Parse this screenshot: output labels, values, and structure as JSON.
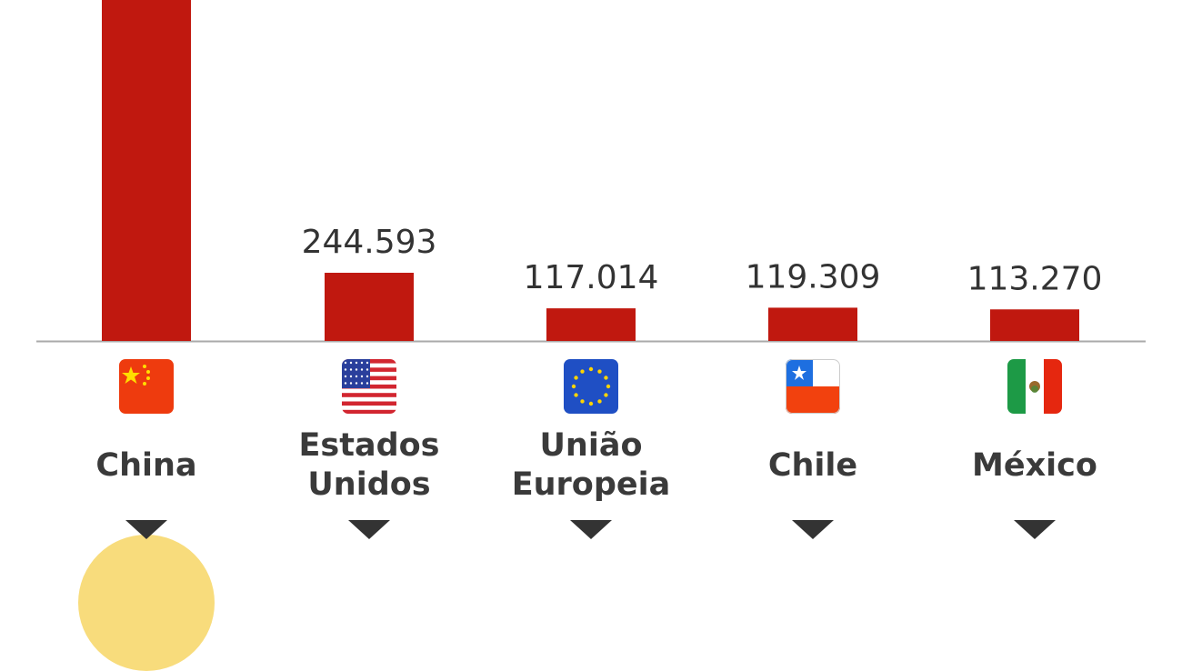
{
  "chart_data": {
    "type": "bar",
    "title": "",
    "xlabel": "",
    "ylabel": "",
    "categories": [
      "China",
      "Estados Unidos",
      "União Europeia",
      "Chile",
      "México"
    ],
    "name_lines": [
      [
        "China"
      ],
      [
        "Estados",
        "Unidos"
      ],
      [
        "União",
        "Europeia"
      ],
      [
        "Chile"
      ],
      [
        "México"
      ]
    ],
    "values": [
      null,
      244593,
      117014,
      119309,
      113270
    ],
    "value_labels": [
      "",
      "244.593",
      "117.014",
      "119.309",
      "113.270"
    ],
    "flags": [
      "china-flag",
      "usa-flag",
      "eu-flag",
      "chile-flag",
      "mexico-flag"
    ],
    "bar_color": "#c0180f",
    "note": "China bar extends beyond top of view; its value label is not visible"
  }
}
